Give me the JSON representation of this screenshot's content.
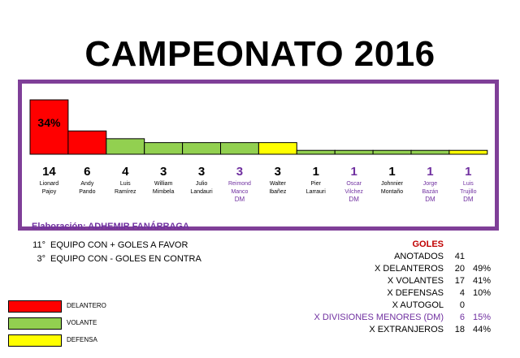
{
  "page": {
    "title": "CAMPEONATO 2016",
    "credit": "Elaboración: ADHEMIR FANÁRRAGA"
  },
  "colors": {
    "DELANTERO": "#ff0000",
    "VOLANTE": "#92d050",
    "DEFENSA": "#ffff00",
    "accent": "#7030a0",
    "frame": "#7f3f98"
  },
  "chart_data": {
    "type": "bar",
    "ylim": [
      0,
      14
    ],
    "top_label": "34%",
    "categories": [
      {
        "value": "14",
        "name": [
          "Lionard",
          "Pajoy"
        ],
        "extra": "",
        "position": "DELANTERO",
        "dm": false
      },
      {
        "value": "6",
        "name": [
          "Andy",
          "Pando"
        ],
        "extra": "",
        "position": "DELANTERO",
        "dm": false
      },
      {
        "value": "4",
        "name": [
          "Luis",
          "Ramírez"
        ],
        "extra": "",
        "position": "VOLANTE",
        "dm": false
      },
      {
        "value": "3",
        "name": [
          "William",
          "Mimbela"
        ],
        "extra": "",
        "position": "VOLANTE",
        "dm": false
      },
      {
        "value": "3",
        "name": [
          "Julio",
          "Landauri"
        ],
        "extra": "",
        "position": "VOLANTE",
        "dm": false
      },
      {
        "value": "3",
        "name": [
          "Reimond",
          "Manco"
        ],
        "extra": "DM",
        "position": "VOLANTE",
        "dm": true
      },
      {
        "value": "3",
        "name": [
          "Walter",
          "Ibañez"
        ],
        "extra": "",
        "position": "DEFENSA",
        "dm": false
      },
      {
        "value": "1",
        "name": [
          "Pier",
          "Larrauri"
        ],
        "extra": "",
        "position": "VOLANTE",
        "dm": false
      },
      {
        "value": "1",
        "name": [
          "Oscar",
          "Vilchez"
        ],
        "extra": "DM",
        "position": "VOLANTE",
        "dm": true
      },
      {
        "value": "1",
        "name": [
          "Johnnier",
          "Montaño"
        ],
        "extra": "",
        "position": "VOLANTE",
        "dm": false
      },
      {
        "value": "1",
        "name": [
          "Jorge",
          "Bazán"
        ],
        "extra": "DM",
        "position": "VOLANTE",
        "dm": true
      },
      {
        "value": "1",
        "name": [
          "Luis",
          "Trujillo"
        ],
        "extra": "DM",
        "position": "DEFENSA",
        "dm": true
      }
    ]
  },
  "stats": [
    {
      "num": "11°",
      "text": "EQUIPO CON + GOLES A FAVOR"
    },
    {
      "num": "3°",
      "text": "EQUIPO CON - GOLES EN CONTRA"
    }
  ],
  "legend": [
    {
      "label": "DELANTERO",
      "color": "#ff0000"
    },
    {
      "label": "VOLANTE",
      "color": "#92d050"
    },
    {
      "label": "DEFENSA",
      "color": "#ffff00"
    }
  ],
  "goles": {
    "header": "GOLES",
    "rows": [
      {
        "label": "ANOTADOS",
        "value": "41",
        "pct": "",
        "highlight": false
      },
      {
        "label": "X DELANTEROS",
        "value": "20",
        "pct": "49%",
        "highlight": false
      },
      {
        "label": "X VOLANTES",
        "value": "17",
        "pct": "41%",
        "highlight": false
      },
      {
        "label": "X DEFENSAS",
        "value": "4",
        "pct": "10%",
        "highlight": false
      },
      {
        "label": "X AUTOGOL",
        "value": "0",
        "pct": "",
        "highlight": false
      },
      {
        "label": "X DIVISIONES MENORES (DM)",
        "value": "6",
        "pct": "15%",
        "highlight": true
      },
      {
        "label": "X EXTRANJEROS",
        "value": "18",
        "pct": "44%",
        "highlight": false
      }
    ]
  }
}
